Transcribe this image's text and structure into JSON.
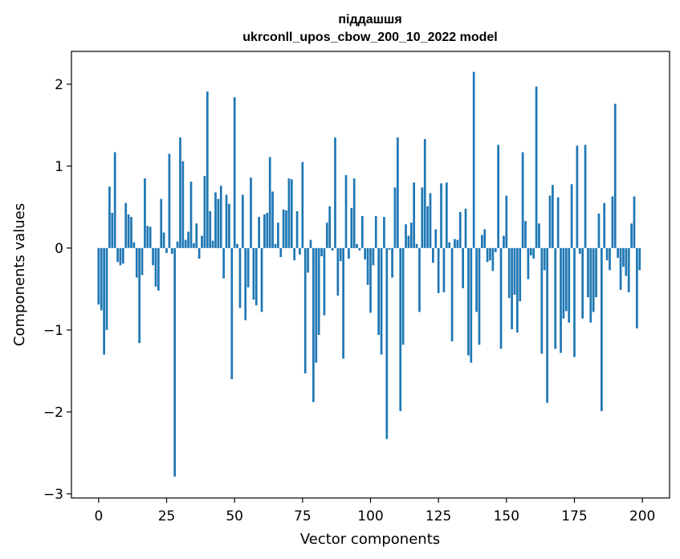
{
  "chart_data": {
    "type": "bar",
    "title": "піддашшя",
    "subtitle": "ukrconll_upos_cbow_200_10_2022 model",
    "xlabel": "Vector components",
    "ylabel": "Components values",
    "xlim": [
      -10,
      210
    ],
    "ylim": [
      -3.05,
      2.4
    ],
    "xticks": [
      0,
      25,
      50,
      75,
      100,
      125,
      150,
      175,
      200
    ],
    "xtick_labels": [
      "0",
      "25",
      "50",
      "75",
      "100",
      "125",
      "150",
      "175",
      "200"
    ],
    "yticks": [
      -3,
      -2,
      -1,
      0,
      1,
      2
    ],
    "ytick_labels": [
      "−3",
      "−2",
      "−1",
      "0",
      "1",
      "2"
    ],
    "bar_color": "#1f77b4",
    "grid": false,
    "x": [
      0,
      1,
      2,
      3,
      4,
      5,
      6,
      7,
      8,
      9,
      10,
      11,
      12,
      13,
      14,
      15,
      16,
      17,
      18,
      19,
      20,
      21,
      22,
      23,
      24,
      25,
      26,
      27,
      28,
      29,
      30,
      31,
      32,
      33,
      34,
      35,
      36,
      37,
      38,
      39,
      40,
      41,
      42,
      43,
      44,
      45,
      46,
      47,
      48,
      49,
      50,
      51,
      52,
      53,
      54,
      55,
      56,
      57,
      58,
      59,
      60,
      61,
      62,
      63,
      64,
      65,
      66,
      67,
      68,
      69,
      70,
      71,
      72,
      73,
      74,
      75,
      76,
      77,
      78,
      79,
      80,
      81,
      82,
      83,
      84,
      85,
      86,
      87,
      88,
      89,
      90,
      91,
      92,
      93,
      94,
      95,
      96,
      97,
      98,
      99,
      100,
      101,
      102,
      103,
      104,
      105,
      106,
      107,
      108,
      109,
      110,
      111,
      112,
      113,
      114,
      115,
      116,
      117,
      118,
      119,
      120,
      121,
      122,
      123,
      124,
      125,
      126,
      127,
      128,
      129,
      130,
      131,
      132,
      133,
      134,
      135,
      136,
      137,
      138,
      139,
      140,
      141,
      142,
      143,
      144,
      145,
      146,
      147,
      148,
      149,
      150,
      151,
      152,
      153,
      154,
      155,
      156,
      157,
      158,
      159,
      160,
      161,
      162,
      163,
      164,
      165,
      166,
      167,
      168,
      169,
      170,
      171,
      172,
      173,
      174,
      175,
      176,
      177,
      178,
      179,
      180,
      181,
      182,
      183,
      184,
      185,
      186,
      187,
      188,
      189,
      190,
      191,
      192,
      193,
      194,
      195,
      196,
      197,
      198,
      199
    ],
    "values": [
      -0.69,
      -0.76,
      -1.3,
      -1.0,
      0.75,
      0.43,
      1.17,
      -0.17,
      -0.21,
      -0.19,
      0.55,
      0.41,
      0.38,
      0.07,
      -0.36,
      -1.16,
      -0.33,
      0.85,
      0.27,
      0.26,
      -0.21,
      -0.47,
      -0.52,
      0.6,
      0.19,
      -0.06,
      1.15,
      -0.07,
      -2.79,
      0.08,
      1.35,
      1.06,
      0.1,
      0.2,
      0.81,
      0.06,
      0.3,
      -0.13,
      0.15,
      0.88,
      1.91,
      0.45,
      0.09,
      0.68,
      0.6,
      0.76,
      -0.37,
      0.65,
      0.54,
      -1.6,
      1.84,
      0.05,
      -0.73,
      0.65,
      -0.88,
      -0.48,
      0.86,
      -0.63,
      -0.7,
      0.38,
      -0.78,
      0.41,
      0.43,
      1.11,
      0.69,
      0.05,
      0.31,
      -0.11,
      0.47,
      0.46,
      0.85,
      0.84,
      -0.15,
      0.45,
      -0.08,
      1.05,
      -1.53,
      -0.3,
      0.1,
      -1.88,
      -1.4,
      -1.06,
      -0.1,
      -0.82,
      0.31,
      0.51,
      -0.03,
      1.35,
      -0.58,
      -0.16,
      -1.35,
      0.89,
      -0.13,
      0.49,
      0.85,
      0.05,
      -0.03,
      0.39,
      -0.14,
      -0.45,
      -0.79,
      -0.21,
      0.39,
      -1.06,
      -1.3,
      0.38,
      -2.33,
      -0.02,
      -0.36,
      0.74,
      1.35,
      -1.99,
      -1.18,
      0.29,
      0.15,
      0.31,
      0.8,
      0.05,
      -0.78,
      0.74,
      1.33,
      0.51,
      0.67,
      -0.18,
      0.23,
      -0.55,
      0.79,
      -0.54,
      0.8,
      0.07,
      -1.14,
      0.11,
      0.1,
      0.44,
      -0.49,
      0.48,
      -1.31,
      -1.4,
      2.15,
      -0.78,
      -1.18,
      0.16,
      0.23,
      -0.17,
      -0.15,
      -0.28,
      -0.05,
      1.26,
      -1.23,
      0.15,
      0.64,
      -0.61,
      -0.99,
      -0.57,
      -1.03,
      -0.65,
      1.17,
      0.33,
      -0.38,
      -0.09,
      -0.13,
      1.97,
      0.3,
      -1.29,
      -0.27,
      -1.89,
      0.64,
      0.77,
      -1.23,
      0.62,
      -1.28,
      -0.86,
      -0.77,
      -0.91,
      0.78,
      -1.33,
      1.25,
      -0.07,
      -0.86,
      1.26,
      -0.6,
      -0.91,
      -0.78,
      -0.6,
      0.42,
      -1.99,
      0.55,
      -0.15,
      -0.27,
      0.63,
      1.76,
      -0.12,
      -0.51,
      -0.23,
      -0.34,
      -0.54,
      0.3,
      0.63,
      -0.98,
      -0.27
    ]
  }
}
